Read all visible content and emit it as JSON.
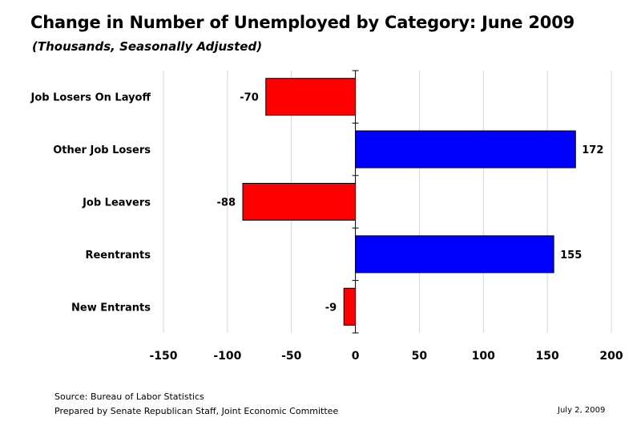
{
  "chart_data": {
    "type": "bar",
    "orientation": "horizontal",
    "title": "Change in Number of Unemployed by Category:  June 2009",
    "subtitle": "(Thousands, Seasonally Adjusted)",
    "categories": [
      "Job Losers On Layoff",
      "Other Job Losers",
      "Job Leavers",
      "Reentrants",
      "New Entrants"
    ],
    "values": [
      -70,
      172,
      -88,
      155,
      -9
    ],
    "data_labels": [
      "-70",
      "172",
      "-88",
      "155",
      "-9"
    ],
    "xlim": [
      -150,
      200
    ],
    "xticks": [
      -150,
      -100,
      -50,
      0,
      50,
      100,
      150,
      200
    ],
    "xtick_labels": [
      "-150",
      "-100",
      "-50",
      "0",
      "50",
      "100",
      "150",
      "200"
    ],
    "grid": "vertical",
    "colors": {
      "positive": "#0000ff",
      "negative": "#ff0000",
      "grid": "#c9d9e8",
      "axis": "#000000"
    }
  },
  "footer": {
    "source": "Source:  Bureau of Labor Statistics",
    "prepared": "Prepared by Senate Republican Staff, Joint Economic Committee",
    "date": "July 2, 2009"
  }
}
